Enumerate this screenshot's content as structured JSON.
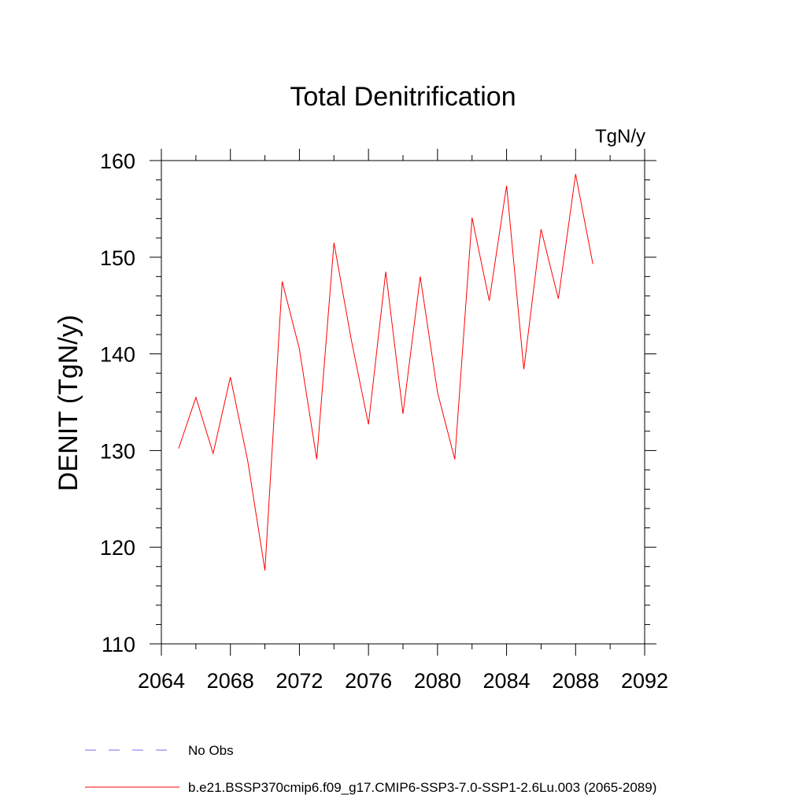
{
  "chart_data": {
    "type": "line",
    "title": "Total Denitrification",
    "units": "TgN/y",
    "ylabel": "DENIT  (TgN/y)",
    "xlabel": "",
    "xlim": [
      2064,
      2092
    ],
    "ylim": [
      110,
      160
    ],
    "xticks": [
      2064,
      2068,
      2072,
      2076,
      2080,
      2084,
      2088,
      2092
    ],
    "yticks": [
      110,
      120,
      130,
      140,
      150,
      160
    ],
    "grid": false,
    "legend_position": "bottom-left",
    "series": [
      {
        "name": "b.e21.BSSP370cmip6.f09_g17.CMIP6-SSP3-7.0-SSP1-2.6Lu.003 (2065-2089)",
        "color": "#ff0000",
        "style": "solid",
        "x": [
          2065,
          2066,
          2067,
          2068,
          2069,
          2070,
          2071,
          2072,
          2073,
          2074,
          2075,
          2076,
          2077,
          2078,
          2079,
          2080,
          2081,
          2082,
          2083,
          2084,
          2085,
          2086,
          2087,
          2088,
          2089
        ],
        "y": [
          130.2,
          135.5,
          129.7,
          137.6,
          129.0,
          117.6,
          147.5,
          140.5,
          129.1,
          151.5,
          141.5,
          132.7,
          148.5,
          133.8,
          148.0,
          136.0,
          129.1,
          154.1,
          145.5,
          157.4,
          138.4,
          152.9,
          145.7,
          158.6,
          149.3
        ]
      }
    ],
    "legend": [
      {
        "label": "No Obs",
        "color": "#7b68ee",
        "style": "dashed"
      },
      {
        "label": "b.e21.BSSP370cmip6.f09_g17.CMIP6-SSP3-7.0-SSP1-2.6Lu.003 (2065-2089)",
        "color": "#ff0000",
        "style": "solid"
      }
    ]
  }
}
